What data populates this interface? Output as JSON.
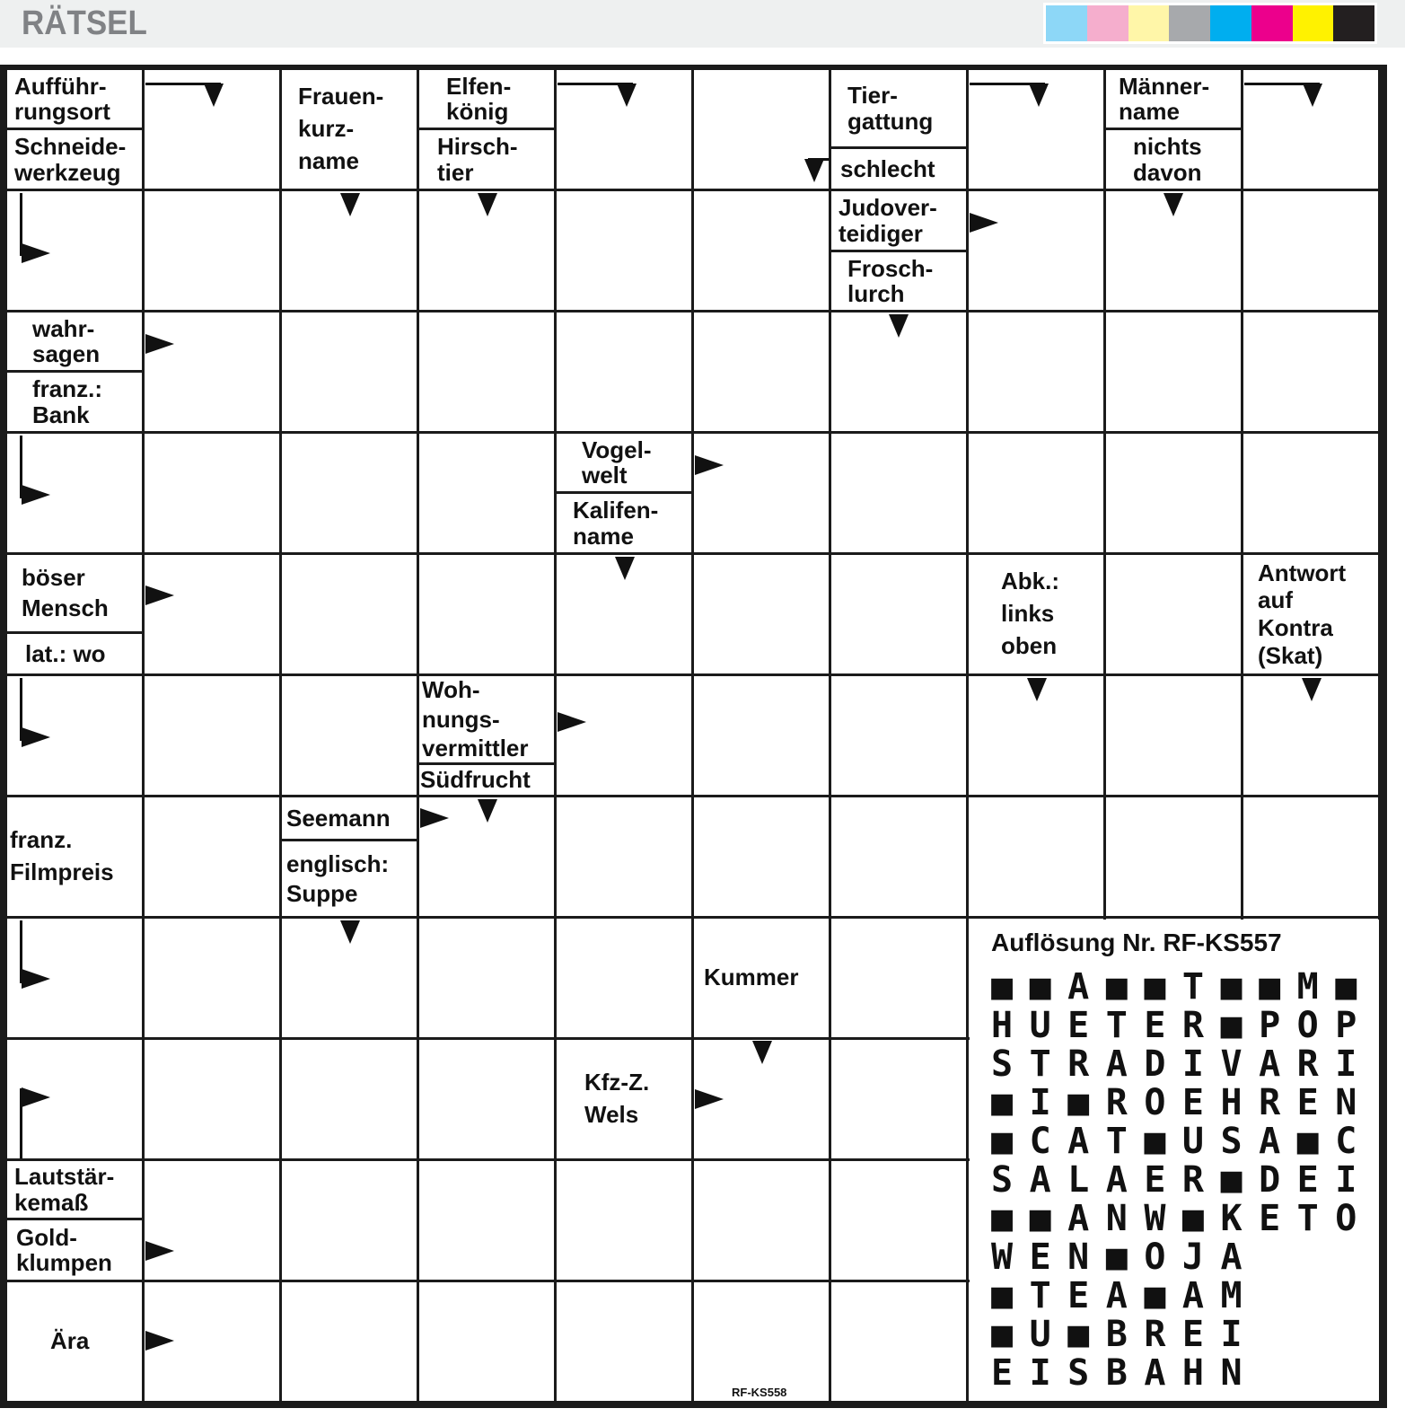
{
  "header": {
    "title": "RÄTSEL",
    "color_bar": [
      "#8dd7f7",
      "#f5aecd",
      "#fff6a8",
      "#a7a9ac",
      "#00aeef",
      "#ec008c",
      "#fff200",
      "#231f20"
    ]
  },
  "clues": {
    "a_top": "Aufführ-\nrungsort",
    "a_bot": "Schneide-\nwerkzeug",
    "b": "Frauen-\nkurz-\nname",
    "c_top": "Elfen-\nkönig",
    "c_bot": "Hirsch-\ntier",
    "d_top": "Tier-\ngattung",
    "d_bot": "schlecht",
    "e_top": "Männer-\nname",
    "e_bot": "nichts\ndavon",
    "f_top": "Judover-\nteidiger",
    "f_bot": "Frosch-\nlurch",
    "g_top": "wahr-\nsagen",
    "g_bot": "franz.:\nBank",
    "h_top": "Vogel-\nwelt",
    "h_bot": "Kalifen-\nname",
    "i_top": "böser\nMensch",
    "i_bot": "lat.: wo",
    "j": "Abk.:\nlinks\noben",
    "k": "Antwort\nauf\nKontra\n(Skat)",
    "l_top": "Woh-\nnungs-\nvermittler",
    "l_bot": "Südfrucht",
    "m": "franz.\nFilmpreis",
    "n_top": "Seemann",
    "n_bot": "englisch:\nSuppe",
    "o": "Kummer",
    "p": "Kfz-Z.\nWels",
    "q_top": "Lautstär-\nkemaß",
    "q_bot": "Gold-\nklumpen",
    "r": "Ära"
  },
  "solution": {
    "title": "Auflösung Nr. RF-KS557",
    "rows": [
      "■■A■■T■■M■",
      "HUETER■POP",
      "STRADIVARI",
      "■I■ROEHREN",
      "■CAT■USA■C",
      "SALAER■DEI",
      "■■ANW■KETO",
      "WEN■OJA",
      "■TEA■AM",
      "■U■BREI",
      "EISBAHN"
    ]
  },
  "puzzle_code": "RF-KS558"
}
